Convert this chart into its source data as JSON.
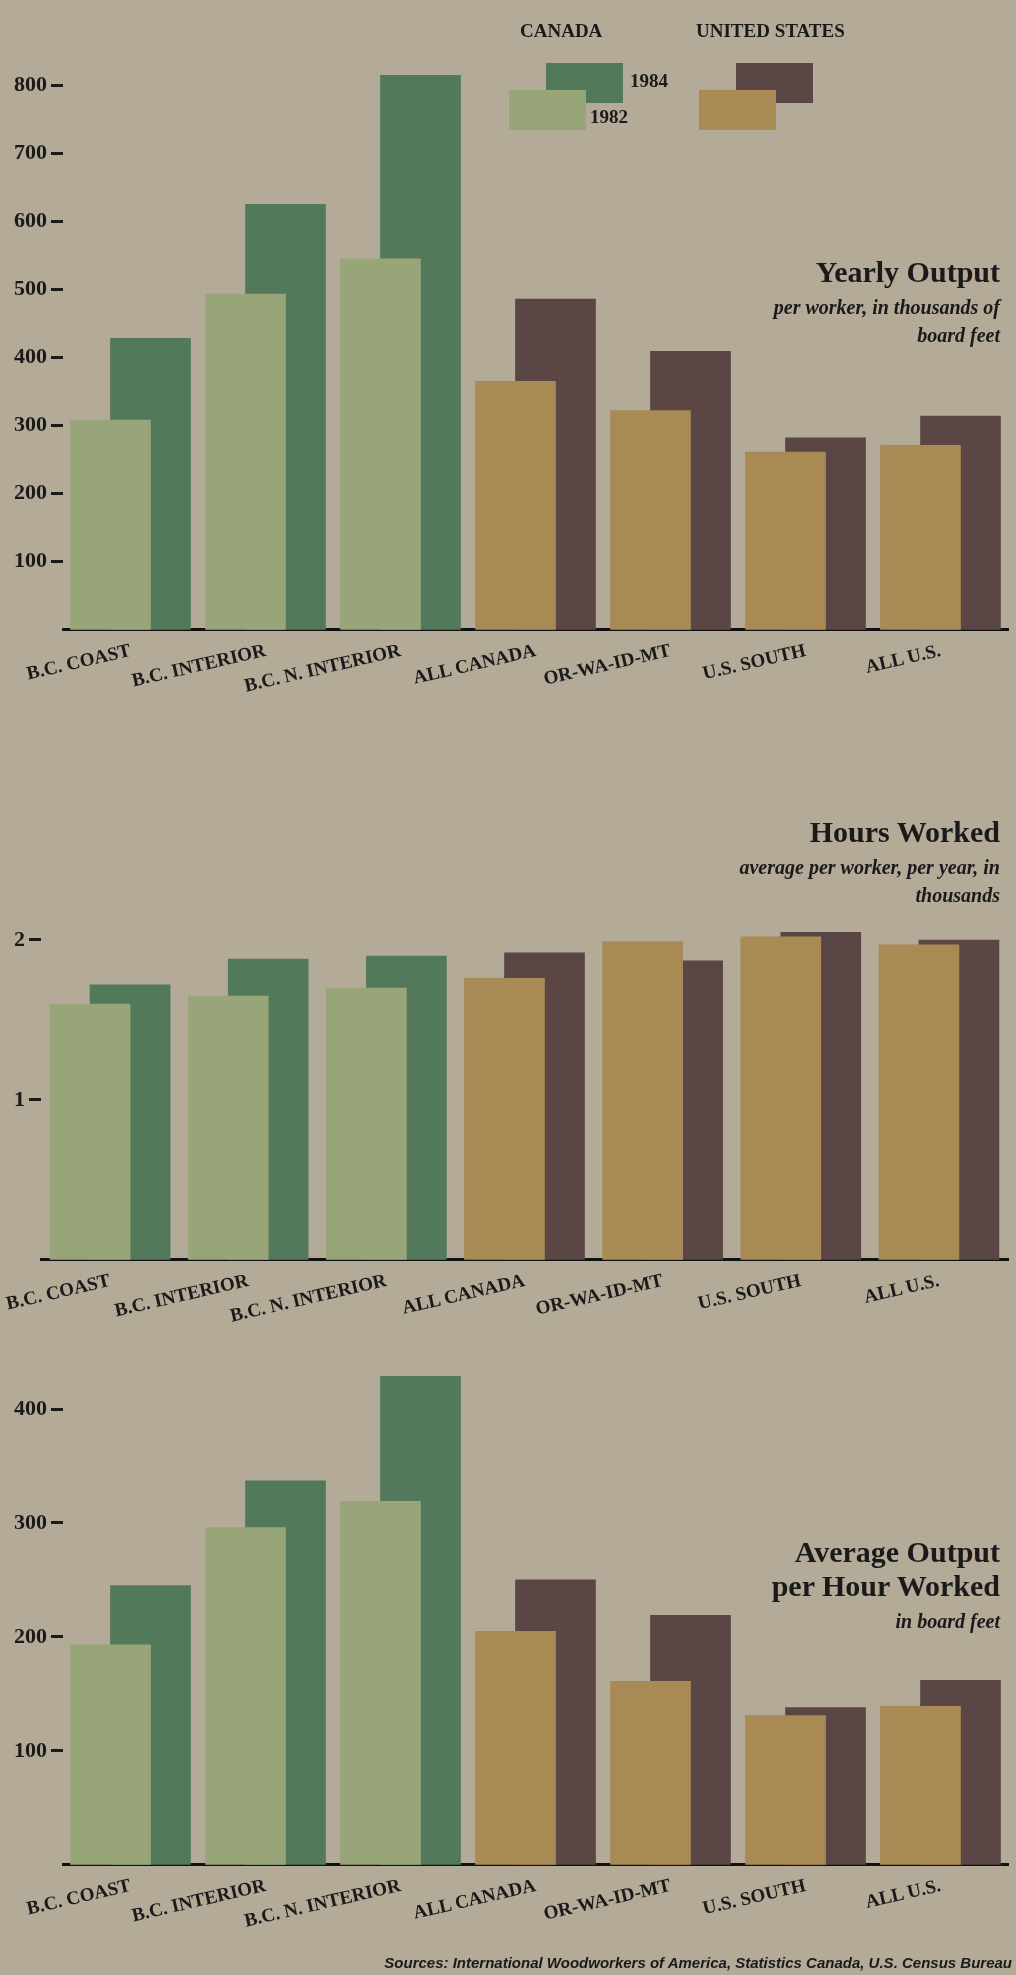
{
  "chart_data": [
    {
      "type": "bar",
      "title": "Yearly Output",
      "subtitle": "per worker, in thousands of board feet",
      "categories": [
        "B.C. COAST",
        "B.C. INTERIOR",
        "B.C. N. INTERIOR",
        "ALL CANADA",
        "OR-WA-ID-MT",
        "U.S. SOUTH",
        "ALL U.S."
      ],
      "series": [
        {
          "name": "1982",
          "colors": [
            "#98a578",
            "#98a578",
            "#98a578",
            "#a88a55",
            "#a88a55",
            "#a88a55",
            "#a88a55"
          ],
          "values": [
            308,
            493,
            545,
            365,
            322,
            261,
            271
          ]
        },
        {
          "name": "1984",
          "colors": [
            "#52795a",
            "#52795a",
            "#52795a",
            "#5a4644",
            "#5a4644",
            "#5a4644",
            "#5a4644"
          ],
          "values": [
            428,
            625,
            815,
            486,
            409,
            282,
            314
          ]
        }
      ],
      "ylim": [
        0,
        815
      ],
      "yticks": [
        100,
        200,
        300,
        400,
        500,
        600,
        700,
        800
      ],
      "legend": "top right",
      "annotations": [
        "CANADA",
        "UNITED STATES"
      ]
    },
    {
      "type": "bar",
      "title": "Hours Worked",
      "subtitle": "average per worker, per year, in thousands",
      "categories": [
        "B.C. COAST",
        "B.C. INTERIOR",
        "B.C. N. INTERIOR",
        "ALL CANADA",
        "OR-WA-ID-MT",
        "U.S. SOUTH",
        "ALL U.S."
      ],
      "series": [
        {
          "colors": [
            "#98a578",
            "#98a578",
            "#98a578",
            "#a88a55",
            "#a88a55",
            "#a88a55",
            "#a88a55"
          ],
          "values": [
            1.6,
            1.65,
            1.7,
            1.76,
            1.99,
            2.02,
            1.97
          ]
        },
        {
          "colors": [
            "#52795a",
            "#52795a",
            "#52795a",
            "#5a4644",
            "#5a4644",
            "#5a4644",
            "#5a4644"
          ],
          "values": [
            1.72,
            1.88,
            1.9,
            1.92,
            1.87,
            2.05,
            2.0
          ]
        }
      ],
      "ylim": [
        0,
        2.05
      ],
      "yticks": [
        1,
        2
      ]
    },
    {
      "type": "bar",
      "title": "Average Output per Hour Worked",
      "subtitle": "in board feet",
      "categories": [
        "B.C. COAST",
        "B.C. INTERIOR",
        "B.C. N. INTERIOR",
        "ALL CANADA",
        "OR-WA-ID-MT",
        "U.S. SOUTH",
        "ALL U.S."
      ],
      "series": [
        {
          "colors": [
            "#98a578",
            "#98a578",
            "#98a578",
            "#a88a55",
            "#a88a55",
            "#a88a55",
            "#a88a55"
          ],
          "values": [
            193,
            296,
            319,
            205,
            161,
            131,
            139
          ]
        },
        {
          "colors": [
            "#52795a",
            "#52795a",
            "#52795a",
            "#5a4644",
            "#5a4644",
            "#5a4644",
            "#5a4644"
          ],
          "values": [
            245,
            337,
            429,
            250,
            219,
            138,
            162
          ]
        }
      ],
      "ylim": [
        0,
        429
      ],
      "yticks": [
        100,
        200,
        300,
        400
      ],
      "annotations": [
        "Sources: International Woodworkers of America, Statistics Canada, U.S. Census Bureau"
      ]
    }
  ]
}
